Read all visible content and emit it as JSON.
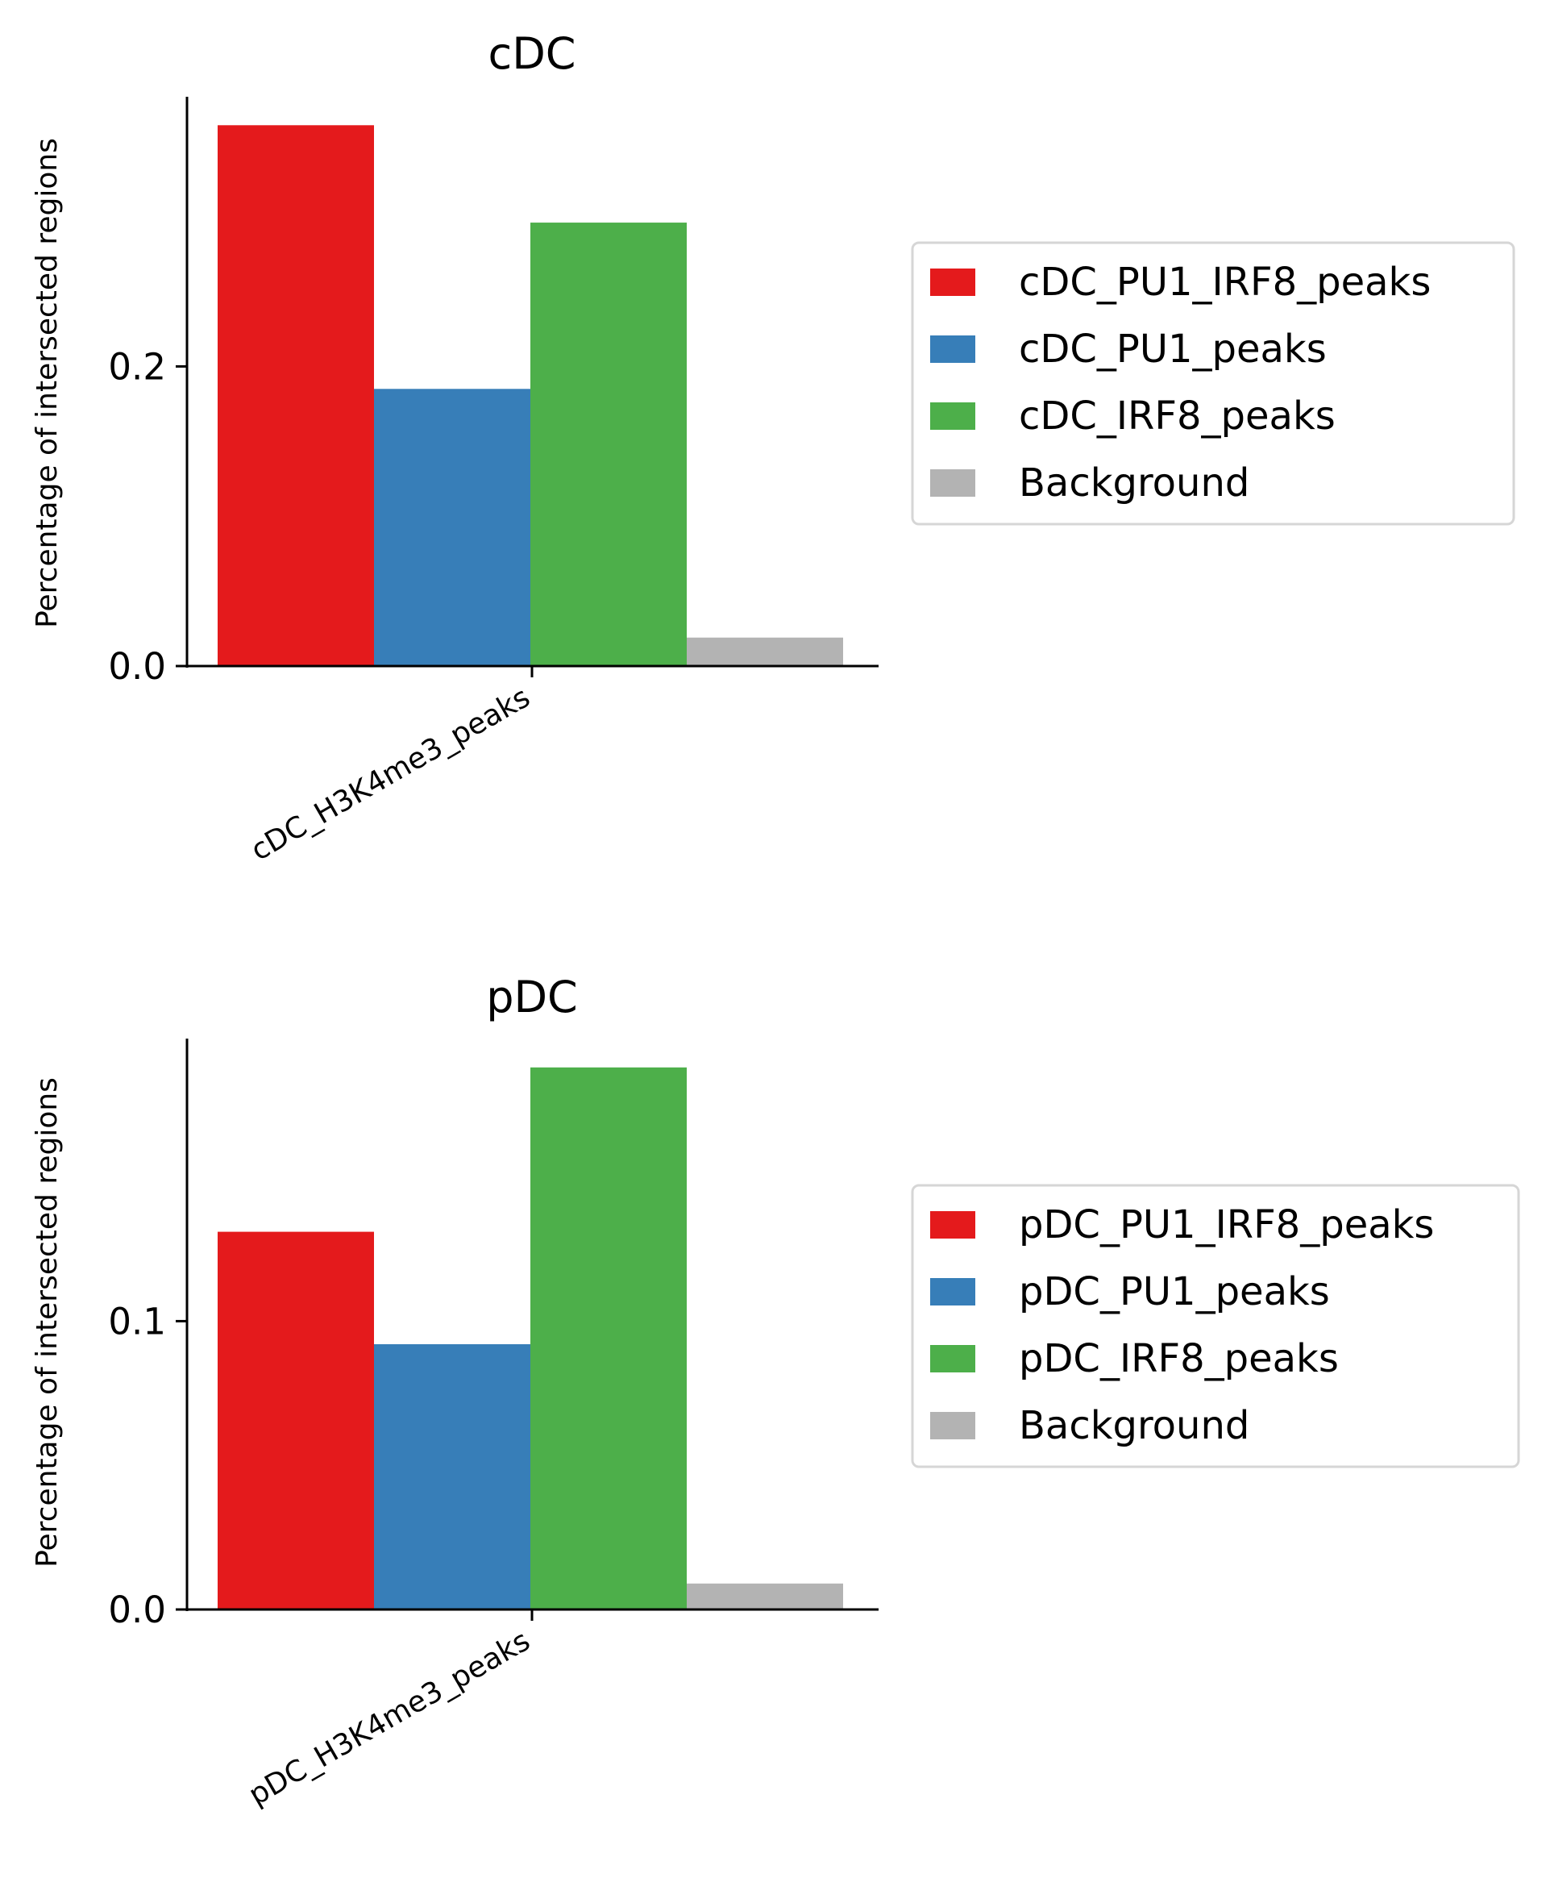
{
  "chart_data": [
    {
      "type": "bar",
      "title": "cDC",
      "ylabel": "Percentage of intersected regions",
      "xlabel": "",
      "categories": [
        "cDC_H3K4me3_peaks"
      ],
      "series": [
        {
          "name": "cDC_PU1_IRF8_peaks",
          "values": [
            0.361
          ],
          "color": "#e41a1c"
        },
        {
          "name": "cDC_PU1_peaks",
          "values": [
            0.185
          ],
          "color": "#377eb8"
        },
        {
          "name": "cDC_IRF8_peaks",
          "values": [
            0.296
          ],
          "color": "#4daf4a"
        },
        {
          "name": "Background",
          "values": [
            0.019
          ],
          "color": "#b3b3b3"
        }
      ],
      "ylim": [
        0,
        0.38
      ],
      "yticks": [
        0.0,
        0.2
      ],
      "ytick_labels": [
        "0.0",
        "0.2"
      ],
      "grid": false,
      "legend": "outside-right"
    },
    {
      "type": "bar",
      "title": "pDC",
      "ylabel": "Percentage of intersected regions",
      "xlabel": "",
      "categories": [
        "pDC_H3K4me3_peaks"
      ],
      "series": [
        {
          "name": "pDC_PU1_IRF8_peaks",
          "values": [
            0.131
          ],
          "color": "#e41a1c"
        },
        {
          "name": "pDC_PU1_peaks",
          "values": [
            0.092
          ],
          "color": "#377eb8"
        },
        {
          "name": "pDC_IRF8_peaks",
          "values": [
            0.188
          ],
          "color": "#4daf4a"
        },
        {
          "name": "Background",
          "values": [
            0.009
          ],
          "color": "#b3b3b3"
        }
      ],
      "ylim": [
        0,
        0.198
      ],
      "yticks": [
        0.0,
        0.1
      ],
      "ytick_labels": [
        "0.0",
        "0.1"
      ],
      "grid": false,
      "legend": "outside-right"
    }
  ]
}
